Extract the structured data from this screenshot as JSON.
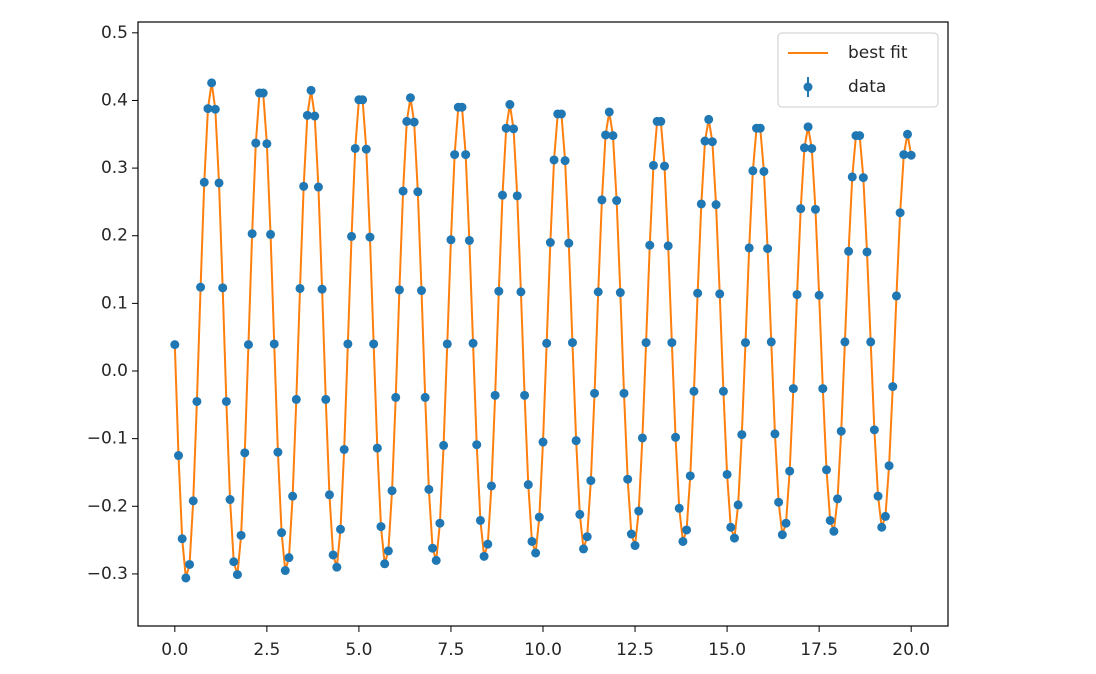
{
  "chart_data": {
    "type": "line",
    "x": [
      0,
      0.1,
      0.2,
      0.3,
      0.4,
      0.5,
      0.6,
      0.7,
      0.8,
      0.9,
      1,
      1.1,
      1.2,
      1.3,
      1.4,
      1.5,
      1.6,
      1.7,
      1.8,
      1.9,
      2,
      2.1,
      2.2,
      2.3,
      2.4,
      2.5,
      2.6,
      2.7,
      2.8,
      2.9,
      3,
      3.1,
      3.2,
      3.3,
      3.4,
      3.5,
      3.6,
      3.7,
      3.8,
      3.9,
      4,
      4.1,
      4.2,
      4.3,
      4.4,
      4.5,
      4.6,
      4.7,
      4.8,
      4.9,
      5,
      5.1,
      5.2,
      5.3,
      5.4,
      5.5,
      5.6,
      5.7,
      5.8,
      5.9,
      6,
      6.1,
      6.2,
      6.3,
      6.4,
      6.5,
      6.6,
      6.7,
      6.8,
      6.9,
      7,
      7.1,
      7.2,
      7.3,
      7.4,
      7.5,
      7.6,
      7.7,
      7.8,
      7.9,
      8,
      8.1,
      8.2,
      8.3,
      8.4,
      8.5,
      8.6,
      8.7,
      8.8,
      8.9,
      9,
      9.1,
      9.2,
      9.3,
      9.4,
      9.5,
      9.6,
      9.7,
      9.8,
      9.9,
      10,
      10.1,
      10.2,
      10.3,
      10.4,
      10.5,
      10.6,
      10.7,
      10.8,
      10.9,
      11,
      11.1,
      11.2,
      11.3,
      11.4,
      11.5,
      11.6,
      11.7,
      11.8,
      11.9,
      12,
      12.1,
      12.2,
      12.3,
      12.4,
      12.5,
      12.6,
      12.7,
      12.8,
      12.9,
      13,
      13.1,
      13.2,
      13.3,
      13.4,
      13.5,
      13.6,
      13.7,
      13.8,
      13.9,
      14,
      14.1,
      14.2,
      14.3,
      14.4,
      14.5,
      14.6,
      14.7,
      14.8,
      14.9,
      15,
      15.1,
      15.2,
      15.3,
      15.4,
      15.5,
      15.6,
      15.7,
      15.8,
      15.9,
      16,
      16.1,
      16.2,
      16.3,
      16.4,
      16.5,
      16.6,
      16.7,
      16.8,
      16.9,
      17,
      17.1,
      17.2,
      17.3,
      17.4,
      17.5,
      17.6,
      17.7,
      17.8,
      17.9,
      18,
      18.1,
      18.2,
      18.3,
      18.4,
      18.5,
      18.6,
      18.7,
      18.8,
      18.9,
      19,
      19.1,
      19.2,
      19.3,
      19.4,
      19.5,
      19.6,
      19.7,
      19.8,
      19.9,
      20
    ],
    "series": [
      {
        "name": "best fit",
        "color": "#ff7f0e",
        "style": "line",
        "values": [
          0.039,
          -0.125,
          -0.248,
          -0.306,
          -0.286,
          -0.192,
          -0.045,
          0.124,
          0.279,
          0.388,
          0.426,
          0.387,
          0.278,
          0.123,
          -0.045,
          -0.19,
          -0.282,
          -0.301,
          -0.243,
          -0.121,
          0.039,
          0.203,
          0.337,
          0.411,
          0.411,
          0.336,
          0.202,
          0.04,
          -0.12,
          -0.239,
          -0.295,
          -0.276,
          -0.185,
          -0.042,
          0.122,
          0.273,
          0.378,
          0.415,
          0.377,
          0.272,
          0.121,
          -0.042,
          -0.183,
          -0.272,
          -0.29,
          -0.234,
          -0.116,
          0.04,
          0.199,
          0.329,
          0.401,
          0.401,
          0.328,
          0.198,
          0.04,
          -0.114,
          -0.23,
          -0.285,
          -0.266,
          -0.177,
          -0.039,
          0.12,
          0.266,
          0.369,
          0.404,
          0.368,
          0.265,
          0.119,
          -0.039,
          -0.175,
          -0.262,
          -0.28,
          -0.225,
          -0.11,
          0.04,
          0.194,
          0.32,
          0.39,
          0.39,
          0.32,
          0.193,
          0.041,
          -0.109,
          -0.221,
          -0.274,
          -0.256,
          -0.17,
          -0.036,
          0.118,
          0.26,
          0.359,
          0.394,
          0.358,
          0.259,
          0.117,
          -0.036,
          -0.168,
          -0.252,
          -0.269,
          -0.216,
          -0.105,
          0.041,
          0.19,
          0.312,
          0.38,
          0.38,
          0.311,
          0.189,
          0.042,
          -0.103,
          -0.212,
          -0.263,
          -0.245,
          -0.162,
          -0.033,
          0.117,
          0.253,
          0.349,
          0.383,
          0.348,
          0.252,
          0.116,
          -0.033,
          -0.16,
          -0.241,
          -0.258,
          -0.207,
          -0.099,
          0.042,
          0.186,
          0.304,
          0.369,
          0.369,
          0.303,
          0.185,
          0.042,
          -0.098,
          -0.203,
          -0.252,
          -0.235,
          -0.155,
          -0.03,
          0.115,
          0.247,
          0.34,
          0.372,
          0.339,
          0.246,
          0.114,
          -0.03,
          -0.153,
          -0.231,
          -0.247,
          -0.198,
          -0.094,
          0.042,
          0.182,
          0.296,
          0.359,
          0.359,
          0.295,
          0.181,
          0.043,
          -0.093,
          -0.194,
          -0.242,
          -0.225,
          -0.148,
          -0.026,
          0.113,
          0.24,
          0.33,
          0.361,
          0.329,
          0.239,
          0.112,
          -0.026,
          -0.146,
          -0.221,
          -0.237,
          -0.189,
          -0.089,
          0.043,
          0.177,
          0.287,
          0.348,
          0.348,
          0.286,
          0.176,
          0.043,
          -0.087,
          -0.185,
          -0.231,
          -0.215,
          -0.14,
          -0.023,
          0.111,
          0.234,
          0.32,
          0.35,
          0.319
        ]
      },
      {
        "name": "data",
        "color": "#1f77b4",
        "style": "errorbar",
        "values": [
          0.039,
          -0.125,
          -0.248,
          -0.306,
          -0.286,
          -0.192,
          -0.045,
          0.124,
          0.279,
          0.388,
          0.426,
          0.387,
          0.278,
          0.123,
          -0.045,
          -0.19,
          -0.282,
          -0.301,
          -0.243,
          -0.121,
          0.039,
          0.203,
          0.337,
          0.411,
          0.411,
          0.336,
          0.202,
          0.04,
          -0.12,
          -0.239,
          -0.295,
          -0.276,
          -0.185,
          -0.042,
          0.122,
          0.273,
          0.378,
          0.415,
          0.377,
          0.272,
          0.121,
          -0.042,
          -0.183,
          -0.272,
          -0.29,
          -0.234,
          -0.116,
          0.04,
          0.199,
          0.329,
          0.401,
          0.401,
          0.328,
          0.198,
          0.04,
          -0.114,
          -0.23,
          -0.285,
          -0.266,
          -0.177,
          -0.039,
          0.12,
          0.266,
          0.369,
          0.404,
          0.368,
          0.265,
          0.119,
          -0.039,
          -0.175,
          -0.262,
          -0.28,
          -0.225,
          -0.11,
          0.04,
          0.194,
          0.32,
          0.39,
          0.39,
          0.32,
          0.193,
          0.041,
          -0.109,
          -0.221,
          -0.274,
          -0.256,
          -0.17,
          -0.036,
          0.118,
          0.26,
          0.359,
          0.394,
          0.358,
          0.259,
          0.117,
          -0.036,
          -0.168,
          -0.252,
          -0.269,
          -0.216,
          -0.105,
          0.041,
          0.19,
          0.312,
          0.38,
          0.38,
          0.311,
          0.189,
          0.042,
          -0.103,
          -0.212,
          -0.263,
          -0.245,
          -0.162,
          -0.033,
          0.117,
          0.253,
          0.349,
          0.383,
          0.348,
          0.252,
          0.116,
          -0.033,
          -0.16,
          -0.241,
          -0.258,
          -0.207,
          -0.099,
          0.042,
          0.186,
          0.304,
          0.369,
          0.369,
          0.303,
          0.185,
          0.042,
          -0.098,
          -0.203,
          -0.252,
          -0.235,
          -0.155,
          -0.03,
          0.115,
          0.247,
          0.34,
          0.372,
          0.339,
          0.246,
          0.114,
          -0.03,
          -0.153,
          -0.231,
          -0.247,
          -0.198,
          -0.094,
          0.042,
          0.182,
          0.296,
          0.359,
          0.359,
          0.295,
          0.181,
          0.043,
          -0.093,
          -0.194,
          -0.242,
          -0.225,
          -0.148,
          -0.026,
          0.113,
          0.24,
          0.33,
          0.361,
          0.329,
          0.239,
          0.112,
          -0.026,
          -0.146,
          -0.221,
          -0.237,
          -0.189,
          -0.089,
          0.043,
          0.177,
          0.287,
          0.348,
          0.348,
          0.286,
          0.176,
          0.043,
          -0.087,
          -0.185,
          -0.231,
          -0.215,
          -0.14,
          -0.023,
          0.111,
          0.234,
          0.32,
          0.35,
          0.319
        ]
      }
    ],
    "xlim": [
      -1,
      21
    ],
    "xticks": [
      {
        "value": 0,
        "label": "0.0"
      },
      2.5,
      {
        "value": 5,
        "label": "5.0"
      },
      7.5,
      {
        "value": 10,
        "label": "10.0"
      },
      12.5,
      {
        "value": 15,
        "label": "15.0"
      },
      17.5,
      {
        "value": 20,
        "label": "20.0"
      }
    ],
    "ylim": [
      -0.377,
      0.516
    ],
    "yticks": [
      {
        "value": -0.3,
        "label": "−0.3"
      },
      {
        "value": -0.2,
        "label": "−0.2"
      },
      {
        "value": -0.1,
        "label": "−0.1"
      },
      {
        "value": 0,
        "label": "0.0"
      },
      0.1,
      0.2,
      0.3,
      0.4,
      0.5
    ],
    "grid": false,
    "legend": "upper right"
  }
}
